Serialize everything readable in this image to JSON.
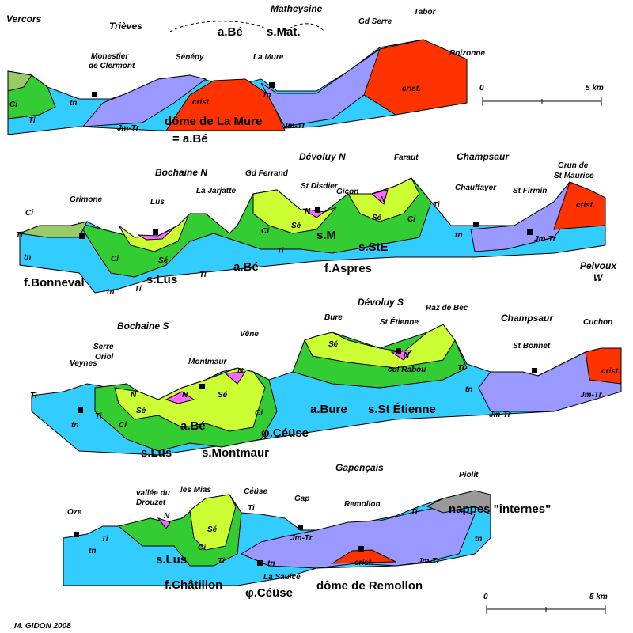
{
  "sections": [
    {
      "labels": [
        "Vercors",
        "Trièves",
        "Matheysine",
        "a.Bé",
        "s.Mat.",
        "Gd Serre",
        "Tabor",
        "Roizonne",
        "Monestier",
        "de Clermont",
        "Sénépy",
        "La Mure",
        "crist.",
        "crist.",
        "Ci",
        "Ti",
        "tn",
        "tn",
        "Jm-Tr",
        "Jm-Tr",
        "dôme de La Mure",
        "= a.Bé"
      ]
    },
    {
      "labels": [
        "Bochaine N",
        "Dévoluy N",
        "Champsaur",
        "Gd Ferrand",
        "Grimone",
        "Lus",
        "La Jarjatte",
        "St Disdier",
        "Gicon",
        "Faraut",
        "Chauffayer",
        "St Firmin",
        "Grun de",
        "St Maurice",
        "crist.",
        "Ci",
        "Ti",
        "tn",
        "Ci",
        "Sé",
        "Sé",
        "Sé",
        "Ci",
        "Ci",
        "N",
        "N",
        "Ti",
        "tn",
        "Jm-Tr",
        "s.M",
        "s.StE",
        "f.Bonneval",
        "s.Lus",
        "a.Bé",
        "f.Aspres",
        "Pelvoux",
        "W",
        "tn",
        "Ti",
        "Ti",
        "Ti"
      ]
    },
    {
      "labels": [
        "Bochaine S",
        "Dévoluy S",
        "Champsaur",
        "Bure",
        "Raz de Bec",
        "St Étienne",
        "Serre",
        "Oriol",
        "Montmaur",
        "Vêne",
        "Veynes",
        "St Bonnet",
        "Cuchon",
        "crist.",
        "col Rabou",
        "Sé",
        "Sé",
        "Sé",
        "N",
        "N",
        "N",
        "N",
        "Ci",
        "Ci",
        "Ti",
        "Ti",
        "Ti",
        "tn",
        "tn",
        "a.Bé",
        "a.Bure",
        "s.St Étienne",
        "s.Lus",
        "s.Montmaur",
        "φ.Céüse",
        "Jm-Tr",
        "Jm-Tr"
      ]
    },
    {
      "labels": [
        "Gapençais",
        "Piolit",
        "Oze",
        "vallée du",
        "Drouzet",
        "les Mias",
        "Céüse",
        "Gap",
        "Remollon",
        "Ti",
        "Ti",
        "nappes \"internes\"",
        "N",
        "Sé",
        "Ci",
        "Ti",
        "Ti",
        "tn",
        "tn",
        "tn",
        "s.Lus",
        "f.Châtillon",
        "φ.Céüse",
        "Jm-Tr",
        "Jm-Tr",
        "La Saulce",
        "crist.",
        "dôme de Remollon"
      ]
    }
  ],
  "scales": [
    {
      "start": "0",
      "end": "5 km"
    },
    {
      "start": "0",
      "end": "5 km"
    }
  ],
  "credit": "M. GIDON 2008"
}
